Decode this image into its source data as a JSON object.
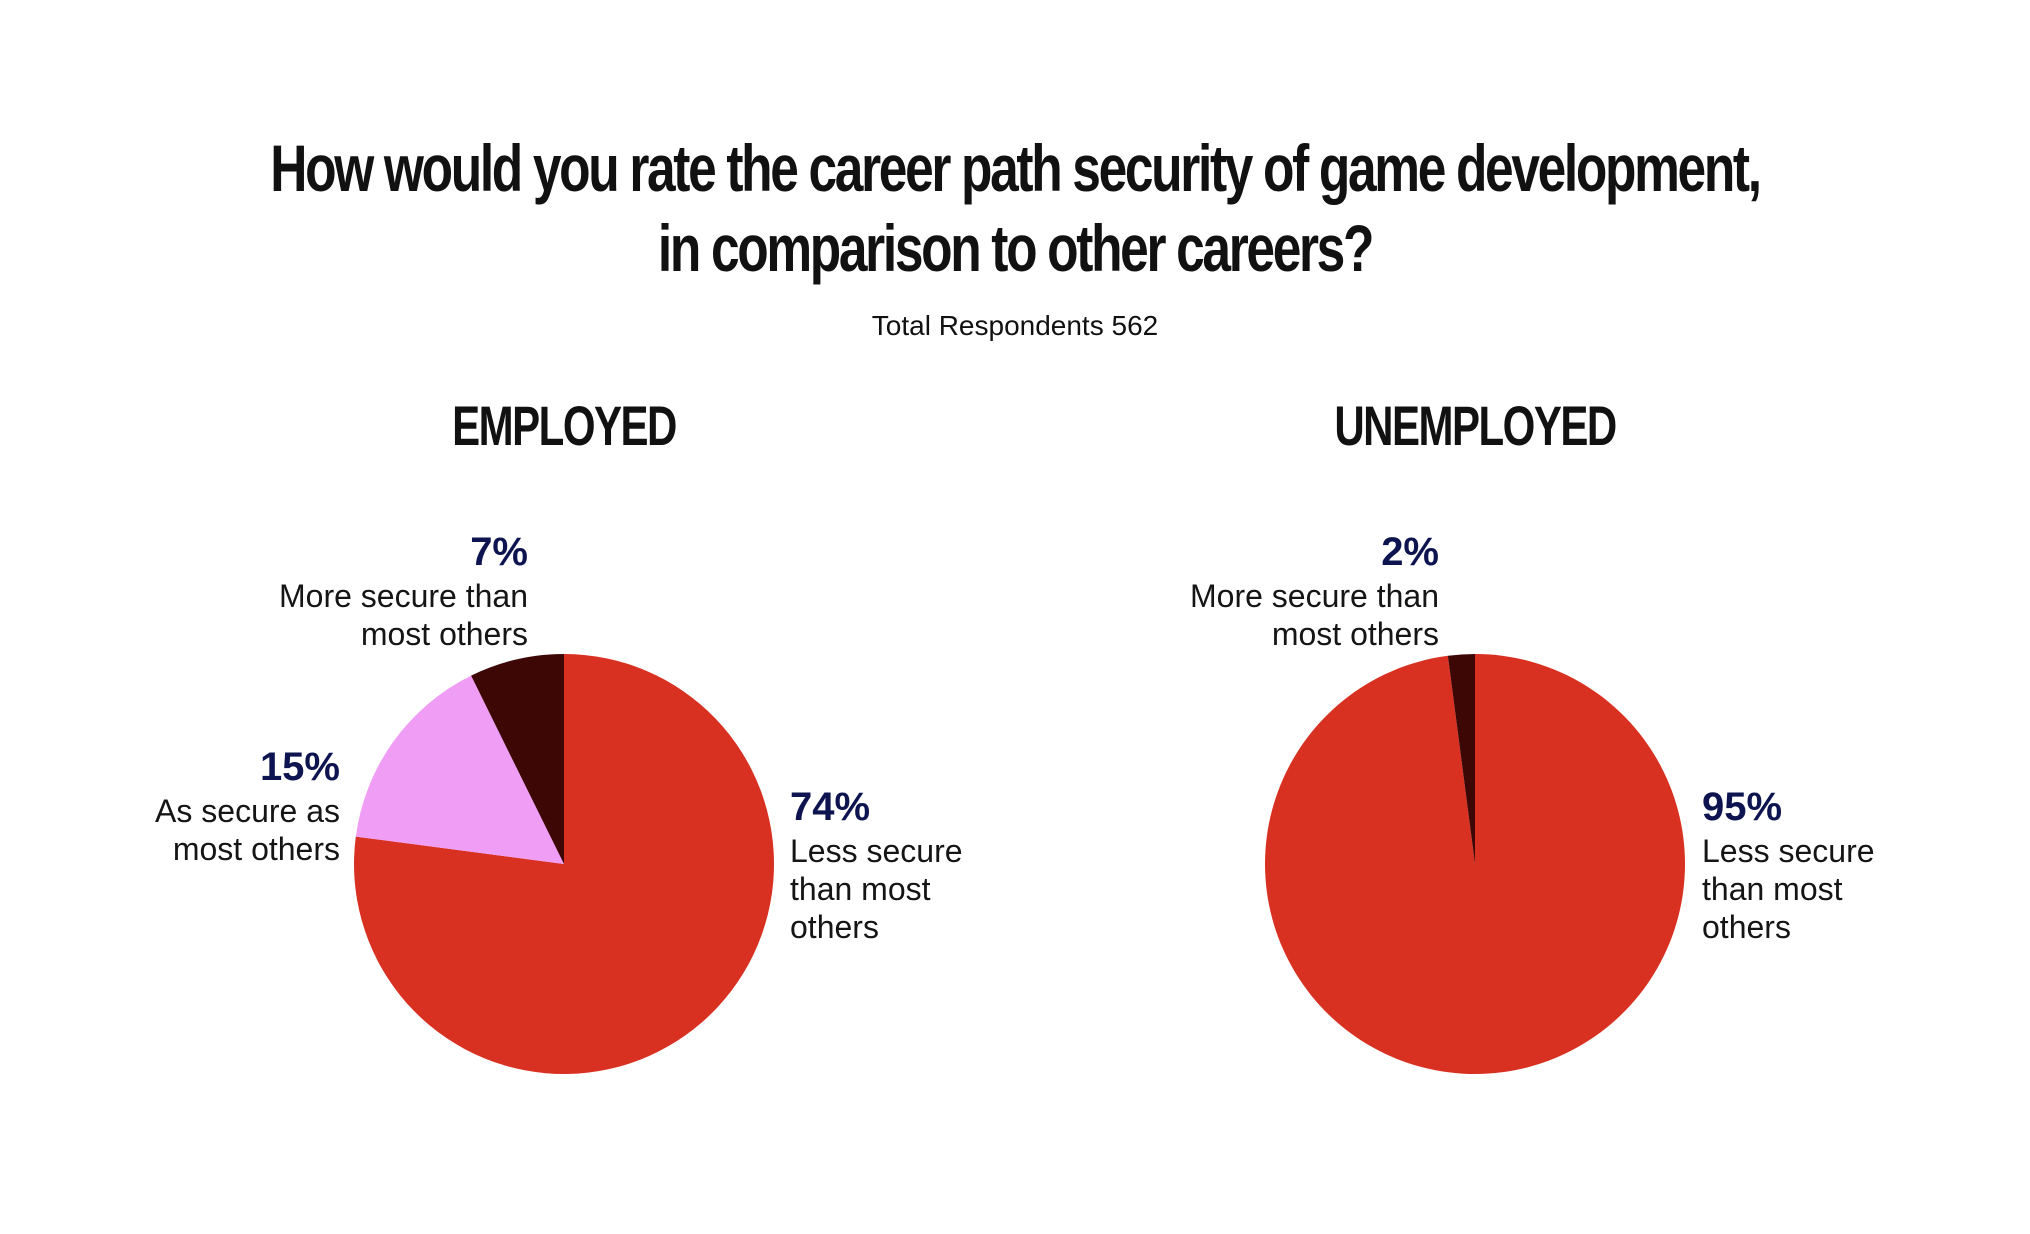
{
  "title_line1": "How would you rate the career path security of game development,",
  "title_line2": "in comparison to other careers?",
  "subtitle": "Total Respondents 562",
  "chart_data": [
    {
      "type": "pie",
      "title": "EMPLOYED",
      "slices": [
        {
          "label": "Less secure than most others",
          "label_lines": [
            "Less secure",
            "than most",
            "others"
          ],
          "value": 74,
          "value_label": "74%",
          "color": "#d93121"
        },
        {
          "label": "As secure as most others",
          "label_lines": [
            "As secure as",
            "most others"
          ],
          "value": 15,
          "value_label": "15%",
          "color": "#f09df5"
        },
        {
          "label": "More secure than most others",
          "label_lines": [
            "More secure than",
            "most others"
          ],
          "value": 7,
          "value_label": "7%",
          "color": "#3d0706"
        }
      ]
    },
    {
      "type": "pie",
      "title": "UNEMPLOYED",
      "slices": [
        {
          "label": "Less secure than most others",
          "label_lines": [
            "Less secure",
            "than most",
            "others"
          ],
          "value": 95,
          "value_label": "95%",
          "color": "#d93121"
        },
        {
          "label": "More secure than most others",
          "label_lines": [
            "More secure than",
            "most others"
          ],
          "value": 2,
          "value_label": "2%",
          "color": "#3d0706"
        }
      ]
    }
  ]
}
